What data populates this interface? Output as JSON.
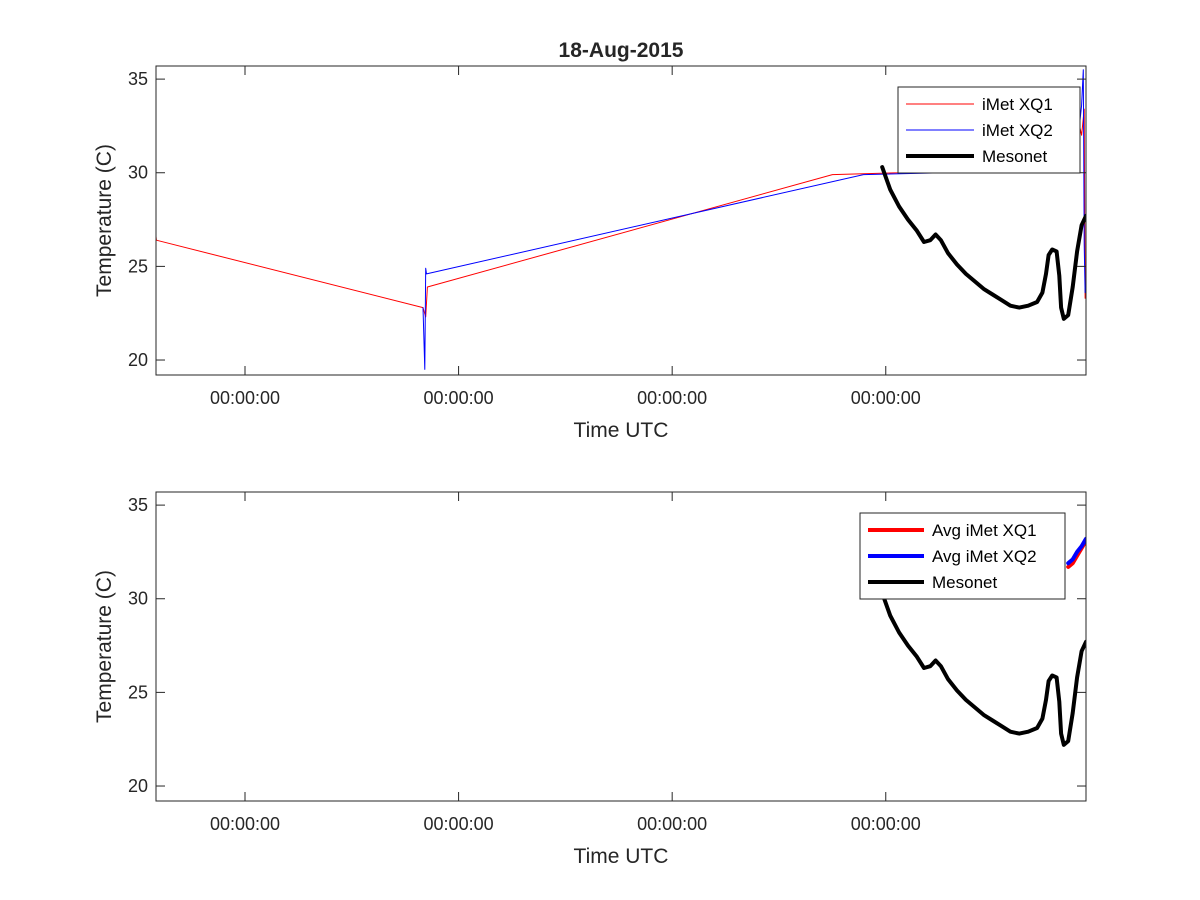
{
  "chart_data": [
    {
      "type": "line",
      "title": "18-Aug-2015",
      "xlabel": "Time UTC",
      "ylabel": "Temperature (C)",
      "x_unit": "hours from left axis edge",
      "xlim": [
        0,
        104.5
      ],
      "ylim": [
        19.2,
        35.7
      ],
      "yticks": [
        20,
        25,
        30,
        35
      ],
      "xticks": [
        {
          "x": 10,
          "label": "00:00:00"
        },
        {
          "x": 34,
          "label": "00:00:00"
        },
        {
          "x": 58,
          "label": "00:00:00"
        },
        {
          "x": 82,
          "label": "00:00:00"
        }
      ],
      "legend_position": "top-right",
      "series": [
        {
          "name": "iMet XQ1",
          "color": "#ff0000",
          "line_weight": "thin",
          "points": [
            [
              0,
              26.6
            ],
            [
              0.05,
              26.4
            ],
            [
              30,
              22.8
            ],
            [
              30.3,
              22.3
            ],
            [
              30.5,
              23.9
            ],
            [
              76,
              29.9
            ],
            [
              83.5,
              30.0
            ],
            [
              87,
              30.2
            ],
            [
              101,
              30.6
            ],
            [
              102,
              31.5
            ],
            [
              102.5,
              33.0
            ],
            [
              103,
              31.6
            ],
            [
              103.5,
              33.1
            ],
            [
              104,
              32.0
            ],
            [
              104.3,
              33.4
            ],
            [
              104.4,
              23.3
            ]
          ]
        },
        {
          "name": "iMet XQ2",
          "color": "#0000ff",
          "line_weight": "thin",
          "points": [
            [
              30,
              22.8
            ],
            [
              30.2,
              19.5
            ],
            [
              30.3,
              24.9
            ],
            [
              30.4,
              24.6
            ],
            [
              79.5,
              29.9
            ],
            [
              88.5,
              30.0
            ],
            [
              101,
              30.5
            ],
            [
              102,
              31.4
            ],
            [
              102.5,
              33.1
            ],
            [
              103,
              31.7
            ],
            [
              103.3,
              32.9
            ],
            [
              103.6,
              31.8
            ],
            [
              104,
              33.6
            ],
            [
              104.2,
              35.5
            ],
            [
              104.3,
              26.2
            ],
            [
              104.4,
              23.6
            ]
          ]
        },
        {
          "name": "Mesonet",
          "color": "#000000",
          "line_weight": "thick",
          "points": [
            [
              81.6,
              30.3
            ],
            [
              82.5,
              29.1
            ],
            [
              83.5,
              28.2
            ],
            [
              84.5,
              27.5
            ],
            [
              85.5,
              26.9
            ],
            [
              86.3,
              26.3
            ],
            [
              87,
              26.4
            ],
            [
              87.6,
              26.7
            ],
            [
              88.2,
              26.4
            ],
            [
              89,
              25.7
            ],
            [
              90,
              25.1
            ],
            [
              91,
              24.6
            ],
            [
              92,
              24.2
            ],
            [
              93,
              23.8
            ],
            [
              94,
              23.5
            ],
            [
              95,
              23.2
            ],
            [
              96,
              22.9
            ],
            [
              97,
              22.8
            ],
            [
              98,
              22.9
            ],
            [
              99,
              23.1
            ],
            [
              99.6,
              23.6
            ],
            [
              100,
              24.6
            ],
            [
              100.3,
              25.6
            ],
            [
              100.7,
              25.9
            ],
            [
              101.2,
              25.8
            ],
            [
              101.5,
              24.5
            ],
            [
              101.7,
              22.8
            ],
            [
              102,
              22.2
            ],
            [
              102.5,
              22.4
            ],
            [
              103,
              23.9
            ],
            [
              103.5,
              25.8
            ],
            [
              104,
              27.2
            ],
            [
              104.5,
              27.7
            ]
          ]
        }
      ]
    },
    {
      "type": "line",
      "title": "",
      "xlabel": "Time UTC",
      "ylabel": "Temperature (C)",
      "x_unit": "hours from left axis edge",
      "xlim": [
        0,
        104.5
      ],
      "ylim": [
        19.2,
        35.7
      ],
      "yticks": [
        20,
        25,
        30,
        35
      ],
      "xticks": [
        {
          "x": 10,
          "label": "00:00:00"
        },
        {
          "x": 34,
          "label": "00:00:00"
        },
        {
          "x": 58,
          "label": "00:00:00"
        },
        {
          "x": 82,
          "label": "00:00:00"
        }
      ],
      "legend_position": "top-right",
      "series": [
        {
          "name": "Avg iMet XQ1",
          "color": "#ff0000",
          "line_weight": "thick",
          "points": [
            [
              102.5,
              31.7
            ],
            [
              103,
              31.9
            ],
            [
              103.5,
              32.3
            ],
            [
              104,
              32.7
            ],
            [
              104.5,
              33.1
            ]
          ]
        },
        {
          "name": "Avg iMet XQ2",
          "color": "#0000ff",
          "line_weight": "thick",
          "points": [
            [
              102.5,
              31.9
            ],
            [
              103,
              32.1
            ],
            [
              103.5,
              32.5
            ],
            [
              104,
              32.8
            ],
            [
              104.5,
              33.2
            ]
          ]
        },
        {
          "name": "Mesonet",
          "color": "#000000",
          "line_weight": "thick",
          "points": [
            [
              81.6,
              30.3
            ],
            [
              82.5,
              29.1
            ],
            [
              83.5,
              28.2
            ],
            [
              84.5,
              27.5
            ],
            [
              85.5,
              26.9
            ],
            [
              86.3,
              26.3
            ],
            [
              87,
              26.4
            ],
            [
              87.6,
              26.7
            ],
            [
              88.2,
              26.4
            ],
            [
              89,
              25.7
            ],
            [
              90,
              25.1
            ],
            [
              91,
              24.6
            ],
            [
              92,
              24.2
            ],
            [
              93,
              23.8
            ],
            [
              94,
              23.5
            ],
            [
              95,
              23.2
            ],
            [
              96,
              22.9
            ],
            [
              97,
              22.8
            ],
            [
              98,
              22.9
            ],
            [
              99,
              23.1
            ],
            [
              99.6,
              23.6
            ],
            [
              100,
              24.6
            ],
            [
              100.3,
              25.6
            ],
            [
              100.7,
              25.9
            ],
            [
              101.2,
              25.8
            ],
            [
              101.5,
              24.5
            ],
            [
              101.7,
              22.8
            ],
            [
              102,
              22.2
            ],
            [
              102.5,
              22.4
            ],
            [
              103,
              23.9
            ],
            [
              103.5,
              25.8
            ],
            [
              104,
              27.2
            ],
            [
              104.5,
              27.7
            ]
          ]
        }
      ]
    }
  ]
}
